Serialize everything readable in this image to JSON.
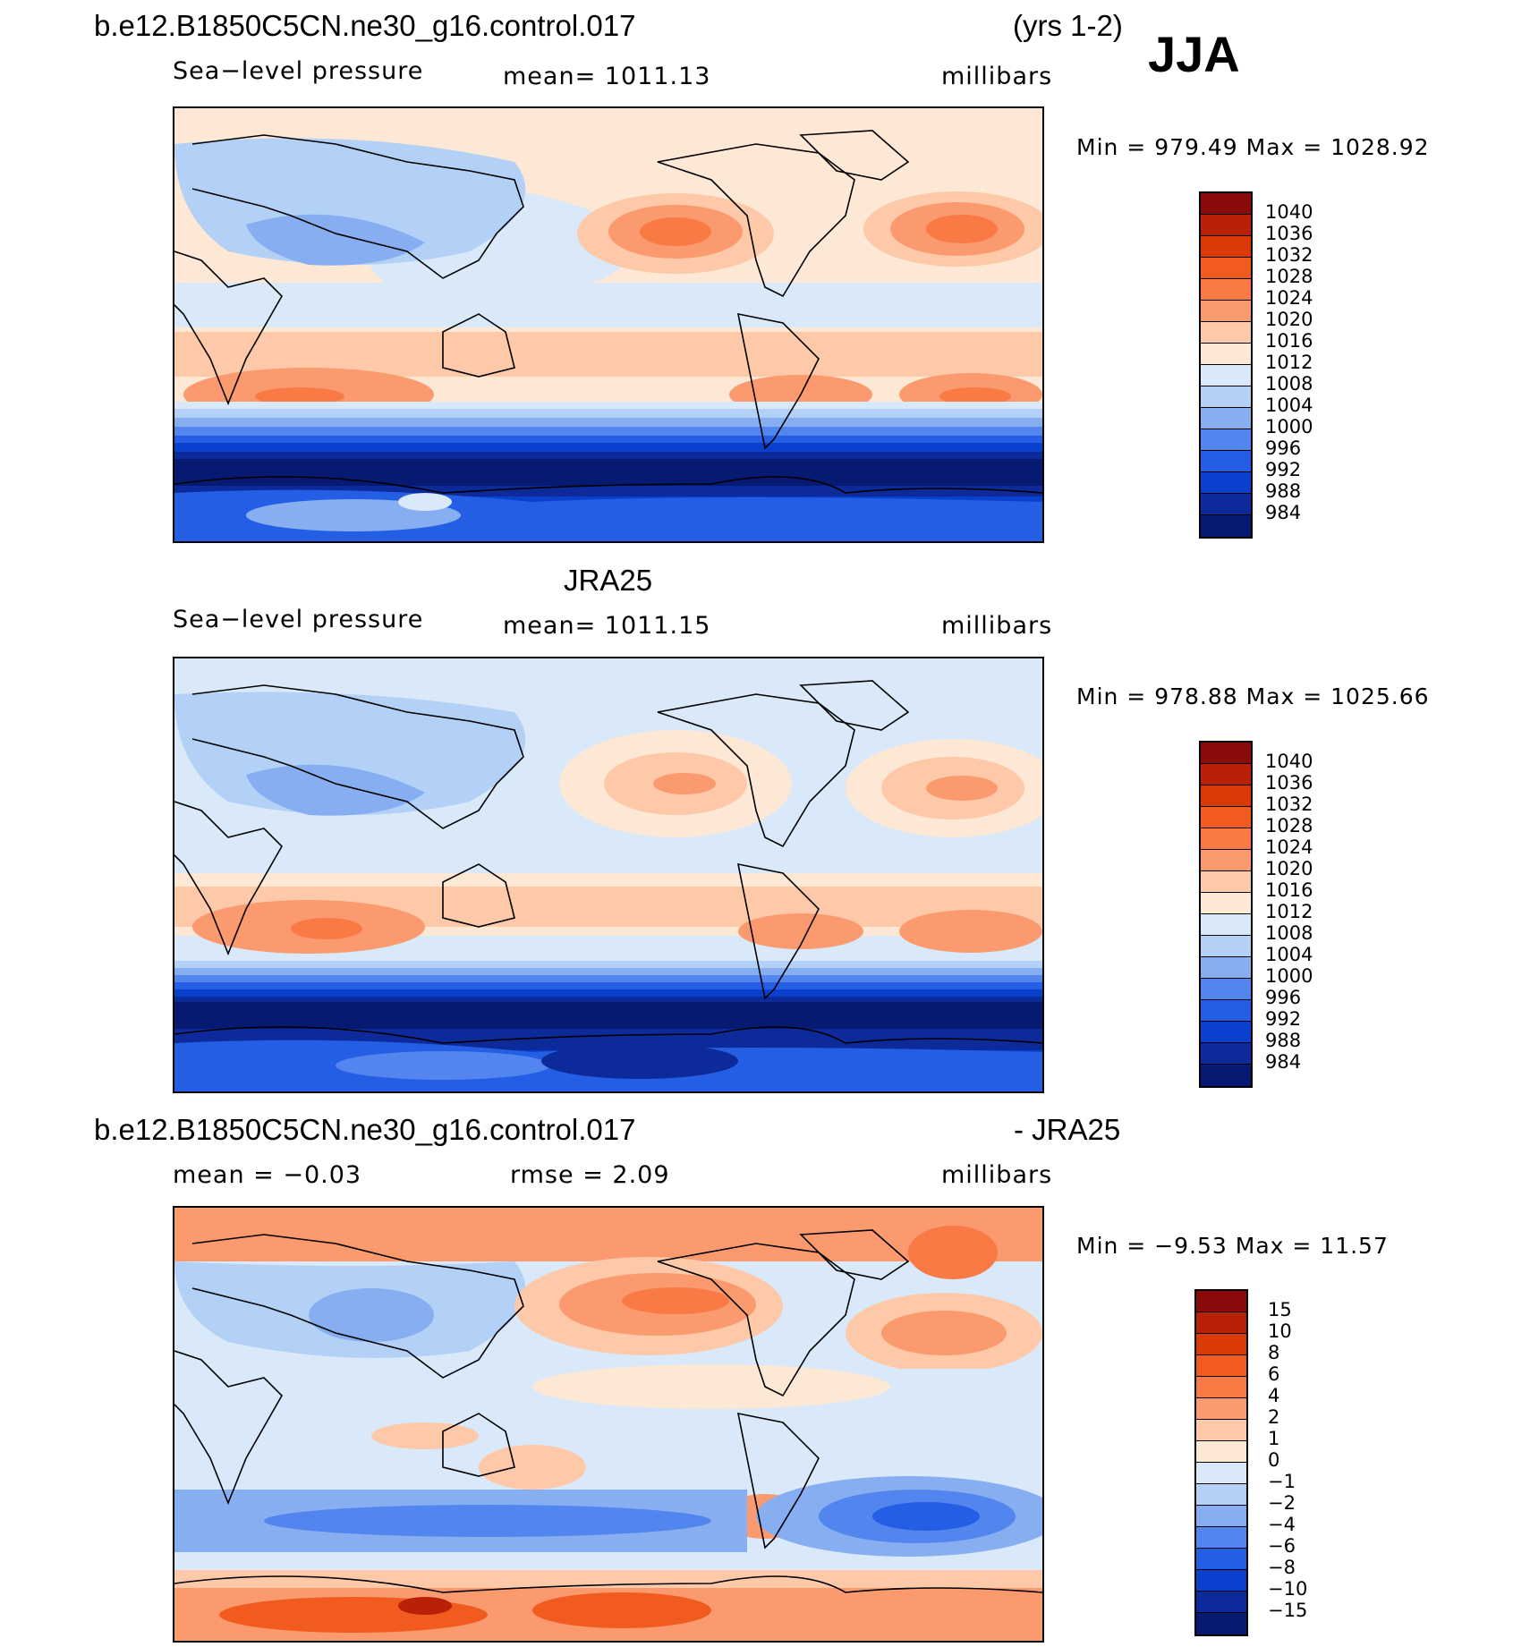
{
  "season": "JJA",
  "panels": [
    {
      "id": "model",
      "title": "b.e12.B1850C5CN.ne30_g16.control.017",
      "title_right": "(yrs 1-2)",
      "variable": "Sea−level pressure",
      "stat": "mean=  1011.13",
      "units": "millibars",
      "minmax": "Min  =  979.49  Max  =  1028.92",
      "colorbar_labels": [
        "1040",
        "1036",
        "1032",
        "1028",
        "1024",
        "1020",
        "1016",
        "1012",
        "1008",
        "1004",
        "1000",
        "996",
        "992",
        "988",
        "984"
      ],
      "colorbar_colors": [
        "#8b0a0a",
        "#b82007",
        "#da3b06",
        "#f25b1f",
        "#f97a45",
        "#fb9a6e",
        "#fdc9a9",
        "#fde7d5",
        "#d9e9f9",
        "#b3d1f6",
        "#86aef0",
        "#5286ee",
        "#245ee4",
        "#0b3fcd",
        "#0c2a9a",
        "#071a72"
      ]
    },
    {
      "id": "obs",
      "title": "JRA25",
      "variable": "Sea−level pressure",
      "stat": "mean=  1011.15",
      "units": "millibars",
      "minmax": "Min  =  978.88  Max  =  1025.66",
      "colorbar_labels": [
        "1040",
        "1036",
        "1032",
        "1028",
        "1024",
        "1020",
        "1016",
        "1012",
        "1008",
        "1004",
        "1000",
        "996",
        "992",
        "988",
        "984"
      ],
      "colorbar_colors": [
        "#8b0a0a",
        "#b82007",
        "#da3b06",
        "#f25b1f",
        "#f97a45",
        "#fb9a6e",
        "#fdc9a9",
        "#fde7d5",
        "#d9e9f9",
        "#b3d1f6",
        "#86aef0",
        "#5286ee",
        "#245ee4",
        "#0b3fcd",
        "#0c2a9a",
        "#071a72"
      ]
    },
    {
      "id": "diff",
      "title": "b.e12.B1850C5CN.ne30_g16.control.017",
      "title_right": "- JRA25",
      "stat_left": "mean  =    −0.03",
      "stat_mid": "rmse  =     2.09",
      "units": "millibars",
      "minmax": "Min  =    −9.53  Max  =    11.57",
      "colorbar_labels": [
        "15",
        "10",
        "8",
        "6",
        "4",
        "2",
        "1",
        "0",
        "−1",
        "−2",
        "−4",
        "−6",
        "−8",
        "−10",
        "−15"
      ],
      "colorbar_colors": [
        "#8b0a0a",
        "#b82007",
        "#da3b06",
        "#f25b1f",
        "#f97a45",
        "#fb9a6e",
        "#fdc9a9",
        "#fde7d5",
        "#d9e9f9",
        "#b3d1f6",
        "#86aef0",
        "#5286ee",
        "#245ee4",
        "#0b3fcd",
        "#0c2a9a",
        "#071a72"
      ]
    }
  ]
}
